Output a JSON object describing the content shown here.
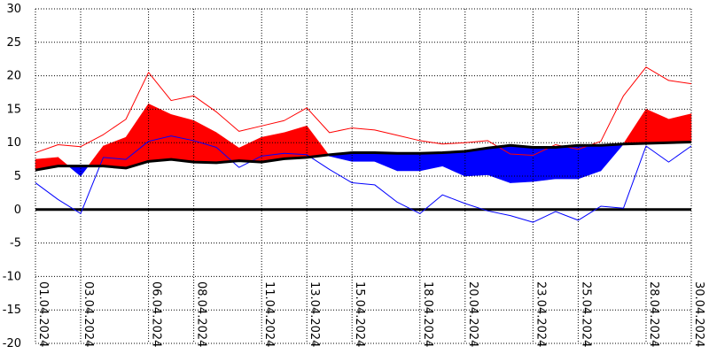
{
  "chart_data": {
    "type": "area",
    "title": "",
    "xlabel": "",
    "ylabel": "",
    "ylim": [
      -20,
      30
    ],
    "yticks": [
      30,
      25,
      20,
      15,
      10,
      5,
      0,
      -5,
      -10,
      -15,
      -20
    ],
    "grid": true,
    "grid_style": "dotted",
    "x_tick_labels": [
      "01.04.2024",
      "03.04.2024",
      "06.04.2024",
      "08.04.2024",
      "11.04.2024",
      "13.04.2024",
      "15.04.2024",
      "18.04.2024",
      "20.04.2024",
      "23.04.2024",
      "25.04.2024",
      "28.04.2024",
      "30.04.2024"
    ],
    "x_tick_days": [
      1,
      3,
      6,
      8,
      11,
      13,
      15,
      18,
      20,
      23,
      25,
      28,
      30
    ],
    "x": [
      1,
      2,
      3,
      4,
      5,
      6,
      7,
      8,
      9,
      10,
      11,
      12,
      13,
      14,
      15,
      16,
      17,
      18,
      19,
      20,
      21,
      22,
      23,
      24,
      25,
      26,
      27,
      28,
      29,
      30
    ],
    "series": [
      {
        "values": [
          5.9,
          6.5,
          6.5,
          6.5,
          6.2,
          7.2,
          7.5,
          7.1,
          7.0,
          7.3,
          7.1,
          7.6,
          7.8,
          8.2,
          8.5,
          8.5,
          8.4,
          8.4,
          8.5,
          8.7,
          9.2,
          9.6,
          9.3,
          9.3,
          9.6,
          9.6,
          9.8,
          9.9,
          10.0,
          10.1
        ],
        "role": "reference",
        "color": "#000000"
      },
      {
        "values": [
          7.5,
          7.8,
          5.0,
          9.5,
          10.8,
          15.8,
          14.2,
          13.3,
          11.5,
          9.2,
          10.8,
          11.5,
          12.5,
          8.0,
          7.2,
          7.2,
          5.8,
          5.8,
          6.5,
          5.0,
          5.2,
          4.0,
          4.2,
          4.6,
          4.6,
          5.8,
          9.8,
          15.0,
          13.5,
          14.3
        ],
        "role": "mean",
        "color_above": "#ff0000",
        "color_below": "#0000ff"
      },
      {
        "values": [
          8.5,
          9.7,
          9.4,
          11.2,
          13.5,
          20.5,
          16.3,
          17.0,
          14.6,
          11.7,
          12.5,
          13.3,
          15.2,
          11.5,
          12.2,
          11.9,
          11.1,
          10.3,
          9.8,
          10.0,
          10.3,
          8.3,
          8.1,
          9.7,
          9.0,
          10.2,
          17.0,
          21.3,
          19.3,
          18.8
        ],
        "role": "max",
        "color": "#ff0000"
      },
      {
        "values": [
          4.0,
          1.5,
          -0.6,
          7.8,
          7.5,
          10.2,
          11.0,
          10.3,
          9.3,
          6.3,
          8.0,
          8.4,
          8.2,
          6.0,
          4.0,
          3.7,
          1.1,
          -0.6,
          2.2,
          0.9,
          -0.2,
          -0.9,
          -1.9,
          -0.3,
          -1.6,
          0.5,
          0.2,
          9.5,
          7.1,
          9.5
        ],
        "role": "min",
        "color": "#0000ff"
      }
    ]
  }
}
